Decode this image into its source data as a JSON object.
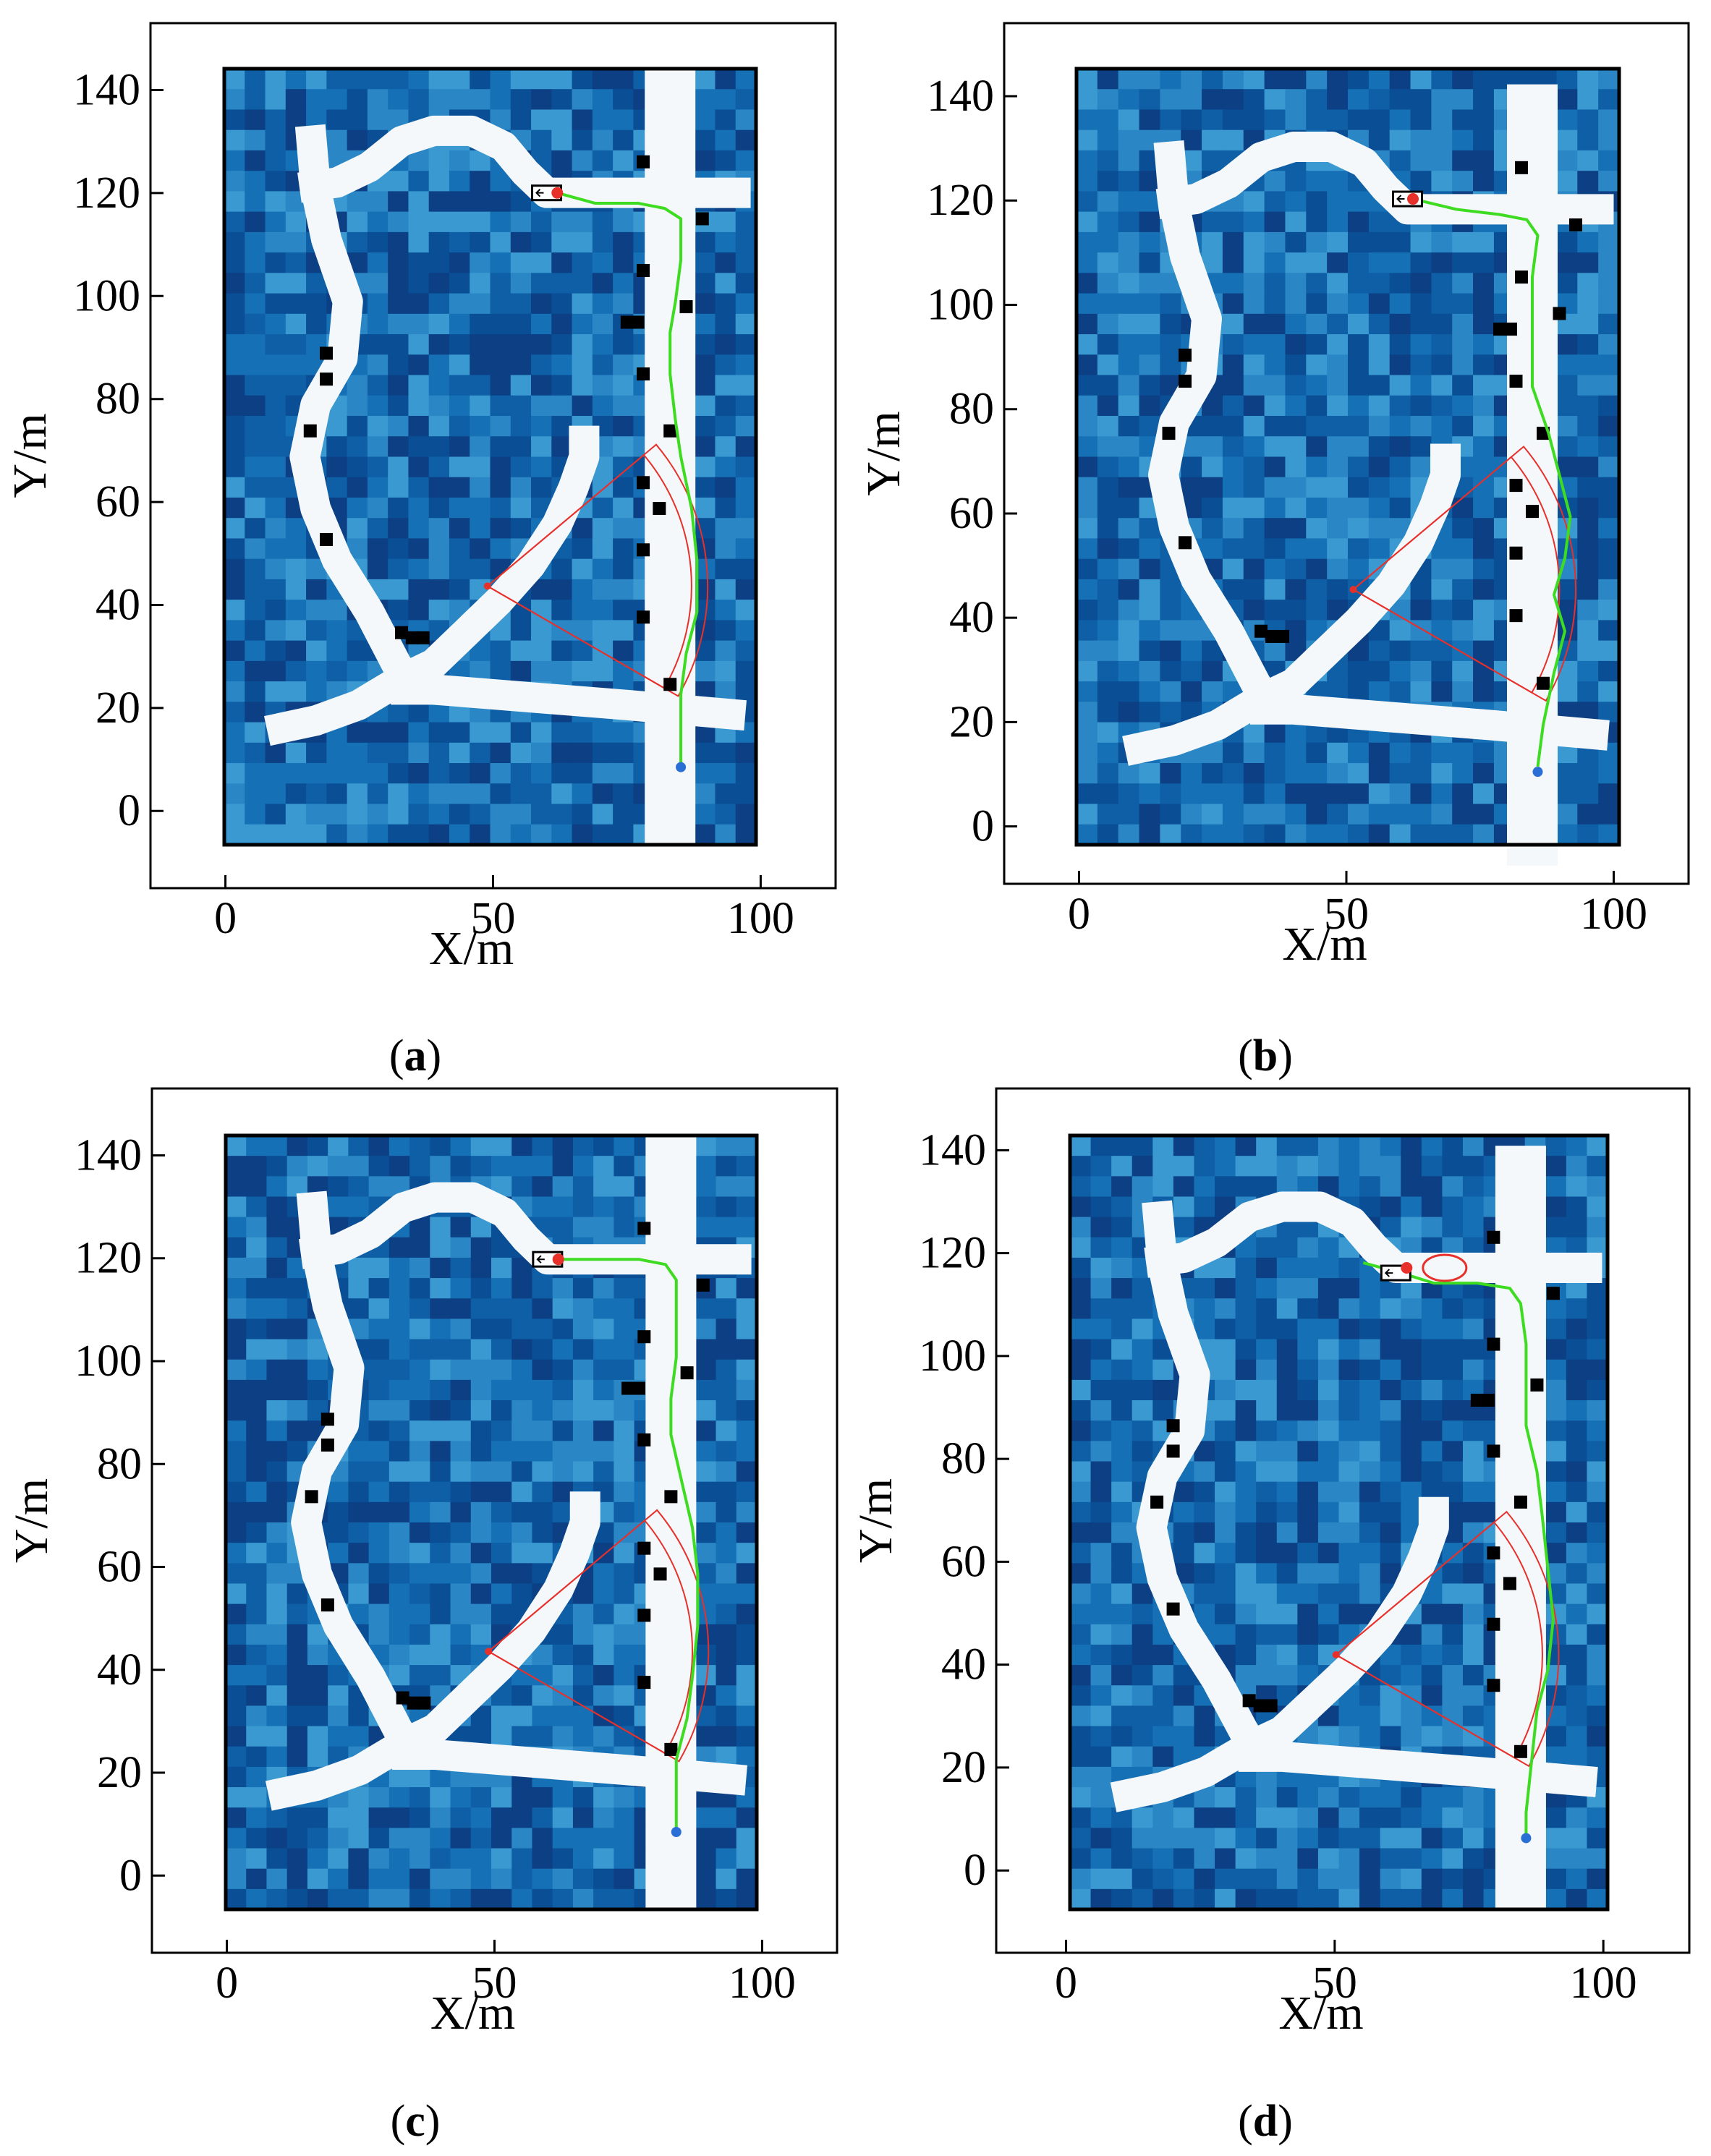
{
  "colors": {
    "grid_palette": [
      "#0a4f96",
      "#0e5fa6",
      "#1670b5",
      "#2a86c4",
      "#3a99d1",
      "#0c3f84"
    ],
    "road": "#f4f8fb",
    "path": "#3ddc20",
    "sector": "#e8302a",
    "obstacle": "#000000",
    "start_point": "#2a6fd6",
    "goal_point": "#e8302a"
  },
  "chart_data": [
    {
      "panel": "(a)",
      "type": "scatter",
      "xlabel": "X/m",
      "ylabel": "Y/m",
      "xlim": [
        -14,
        114
      ],
      "ylim": [
        -15,
        153
      ],
      "xticks": [
        0,
        50,
        100
      ],
      "yticks": [
        0,
        20,
        40,
        60,
        80,
        100,
        120,
        140
      ],
      "map_extent": {
        "x": [
          1,
          100
        ],
        "y": [
          -7,
          143
        ]
      },
      "obstacles": [
        [
          79,
          125
        ],
        [
          90,
          114
        ],
        [
          79,
          104
        ],
        [
          87,
          97
        ],
        [
          76,
          94
        ],
        [
          78,
          94
        ],
        [
          79,
          84
        ],
        [
          84,
          73
        ],
        [
          79,
          63
        ],
        [
          82,
          58
        ],
        [
          79,
          50
        ],
        [
          79,
          37
        ],
        [
          84,
          24
        ],
        [
          20,
          88
        ],
        [
          20,
          83
        ],
        [
          17,
          73
        ],
        [
          20,
          52
        ],
        [
          34,
          34
        ],
        [
          36,
          33
        ],
        [
          38,
          33
        ]
      ],
      "path": [
        [
          63,
          119
        ],
        [
          70,
          117
        ],
        [
          78,
          117
        ],
        [
          83,
          116
        ],
        [
          86,
          114
        ],
        [
          86,
          106
        ],
        [
          85,
          98
        ],
        [
          84,
          92
        ],
        [
          84,
          84
        ],
        [
          85,
          75
        ],
        [
          86,
          68
        ],
        [
          88,
          58
        ],
        [
          89,
          48
        ],
        [
          89,
          38
        ],
        [
          87,
          30
        ],
        [
          86,
          22
        ],
        [
          86,
          10
        ],
        [
          86,
          8
        ]
      ],
      "start": [
        86,
        8
      ],
      "goal": [
        63,
        119
      ],
      "vehicle": [
        61,
        119
      ],
      "sector": {
        "center": [
          50,
          43
        ],
        "radius": 41,
        "radius_inner": 38,
        "angles_deg": [
          -30,
          40
        ]
      },
      "ellipse": null
    },
    {
      "panel": "(b)",
      "type": "scatter",
      "xlabel": "X/m",
      "ylabel": "Y/m",
      "xlim": [
        -14,
        114
      ],
      "ylim": [
        -11,
        154
      ],
      "xticks": [
        0,
        50,
        100
      ],
      "yticks": [
        0,
        20,
        40,
        60,
        80,
        100,
        120,
        140
      ],
      "map_extent": {
        "x": [
          0,
          100
        ],
        "y": [
          -3,
          146
        ]
      },
      "obstacles": [
        [
          82,
          127
        ],
        [
          92,
          116
        ],
        [
          82,
          106
        ],
        [
          89,
          99
        ],
        [
          78,
          96
        ],
        [
          80,
          96
        ],
        [
          81,
          86
        ],
        [
          86,
          76
        ],
        [
          81,
          66
        ],
        [
          84,
          61
        ],
        [
          81,
          53
        ],
        [
          81,
          41
        ],
        [
          86,
          28
        ],
        [
          20,
          91
        ],
        [
          20,
          86
        ],
        [
          17,
          76
        ],
        [
          20,
          55
        ],
        [
          34,
          38
        ],
        [
          36,
          37
        ],
        [
          38,
          37
        ]
      ],
      "path": [
        [
          62,
          121
        ],
        [
          70,
          119
        ],
        [
          78,
          118
        ],
        [
          83,
          117
        ],
        [
          85,
          114
        ],
        [
          84,
          106
        ],
        [
          84,
          99
        ],
        [
          84,
          92
        ],
        [
          84,
          85
        ],
        [
          87,
          76
        ],
        [
          89,
          68
        ],
        [
          91,
          60
        ],
        [
          90,
          52
        ],
        [
          88,
          45
        ],
        [
          90,
          38
        ],
        [
          88,
          30
        ],
        [
          86,
          20
        ],
        [
          85,
          12
        ]
      ],
      "start": [
        85,
        11
      ],
      "goal": [
        62,
        121
      ],
      "vehicle": [
        61,
        121
      ],
      "sector": {
        "center": [
          51,
          46
        ],
        "radius": 41,
        "radius_inner": 38,
        "angles_deg": [
          -30,
          40
        ]
      },
      "ellipse": null
    },
    {
      "panel": "(c)",
      "type": "scatter",
      "xlabel": "X/m",
      "ylabel": "Y/m",
      "xlim": [
        -14,
        114
      ],
      "ylim": [
        -15,
        153
      ],
      "xticks": [
        0,
        50,
        100
      ],
      "yticks": [
        0,
        20,
        40,
        60,
        80,
        100,
        120,
        140
      ],
      "map_extent": {
        "x": [
          1,
          100
        ],
        "y": [
          -7,
          143
        ]
      },
      "obstacles": [
        [
          79,
          125
        ],
        [
          90,
          114
        ],
        [
          79,
          104
        ],
        [
          87,
          97
        ],
        [
          76,
          94
        ],
        [
          78,
          94
        ],
        [
          79,
          84
        ],
        [
          84,
          73
        ],
        [
          79,
          63
        ],
        [
          82,
          58
        ],
        [
          79,
          50
        ],
        [
          79,
          37
        ],
        [
          84,
          24
        ],
        [
          20,
          88
        ],
        [
          20,
          83
        ],
        [
          17,
          73
        ],
        [
          20,
          52
        ],
        [
          34,
          34
        ],
        [
          36,
          33
        ],
        [
          38,
          33
        ]
      ],
      "path": [
        [
          63,
          119
        ],
        [
          70,
          119
        ],
        [
          78,
          119
        ],
        [
          83,
          118
        ],
        [
          85,
          115
        ],
        [
          85,
          108
        ],
        [
          85,
          100
        ],
        [
          84,
          92
        ],
        [
          84,
          85
        ],
        [
          86,
          76
        ],
        [
          88,
          67
        ],
        [
          89,
          58
        ],
        [
          89,
          48
        ],
        [
          88,
          38
        ],
        [
          87,
          30
        ],
        [
          85,
          22
        ],
        [
          85,
          12
        ],
        [
          85,
          8
        ]
      ],
      "start": [
        85,
        8
      ],
      "goal": [
        63,
        119
      ],
      "vehicle": [
        61,
        119
      ],
      "sector": {
        "center": [
          50,
          43
        ],
        "radius": 41,
        "radius_inner": 38,
        "angles_deg": [
          -30,
          40
        ]
      },
      "ellipse": null
    },
    {
      "panel": "(d)",
      "type": "scatter",
      "xlabel": "X/m",
      "ylabel": "Y/m",
      "xlim": [
        -13,
        116
      ],
      "ylim": [
        -16,
        152
      ],
      "xticks": [
        0,
        50,
        100
      ],
      "yticks": [
        0,
        20,
        40,
        60,
        80,
        100,
        120,
        140
      ],
      "map_extent": {
        "x": [
          1,
          100
        ],
        "y": [
          -7,
          145
        ]
      },
      "obstacles": [
        [
          79,
          125
        ],
        [
          90,
          114
        ],
        [
          79,
          104
        ],
        [
          87,
          96
        ],
        [
          76,
          93
        ],
        [
          78,
          93
        ],
        [
          79,
          83
        ],
        [
          84,
          73
        ],
        [
          79,
          63
        ],
        [
          82,
          57
        ],
        [
          79,
          49
        ],
        [
          79,
          37
        ],
        [
          84,
          24
        ],
        [
          20,
          88
        ],
        [
          20,
          83
        ],
        [
          17,
          73
        ],
        [
          20,
          52
        ],
        [
          34,
          34
        ],
        [
          36,
          33
        ],
        [
          38,
          33
        ]
      ],
      "path": [
        [
          55,
          120
        ],
        [
          62,
          118
        ],
        [
          68,
          116
        ],
        [
          76,
          116
        ],
        [
          82,
          115
        ],
        [
          84,
          112
        ],
        [
          85,
          104
        ],
        [
          85,
          96
        ],
        [
          85,
          88
        ],
        [
          87,
          79
        ],
        [
          88,
          70
        ],
        [
          89,
          60
        ],
        [
          90,
          50
        ],
        [
          89,
          40
        ],
        [
          87,
          32
        ],
        [
          86,
          22
        ],
        [
          85,
          12
        ],
        [
          85,
          7
        ]
      ],
      "start": [
        85,
        7
      ],
      "goal": [
        63,
        119
      ],
      "vehicle": [
        61,
        118
      ],
      "sector": {
        "center": [
          50,
          43
        ],
        "radius": 41,
        "radius_inner": 38,
        "angles_deg": [
          -30,
          40
        ]
      },
      "ellipse": {
        "center": [
          70,
          119
        ],
        "rx": 4,
        "ry": 2
      }
    }
  ]
}
